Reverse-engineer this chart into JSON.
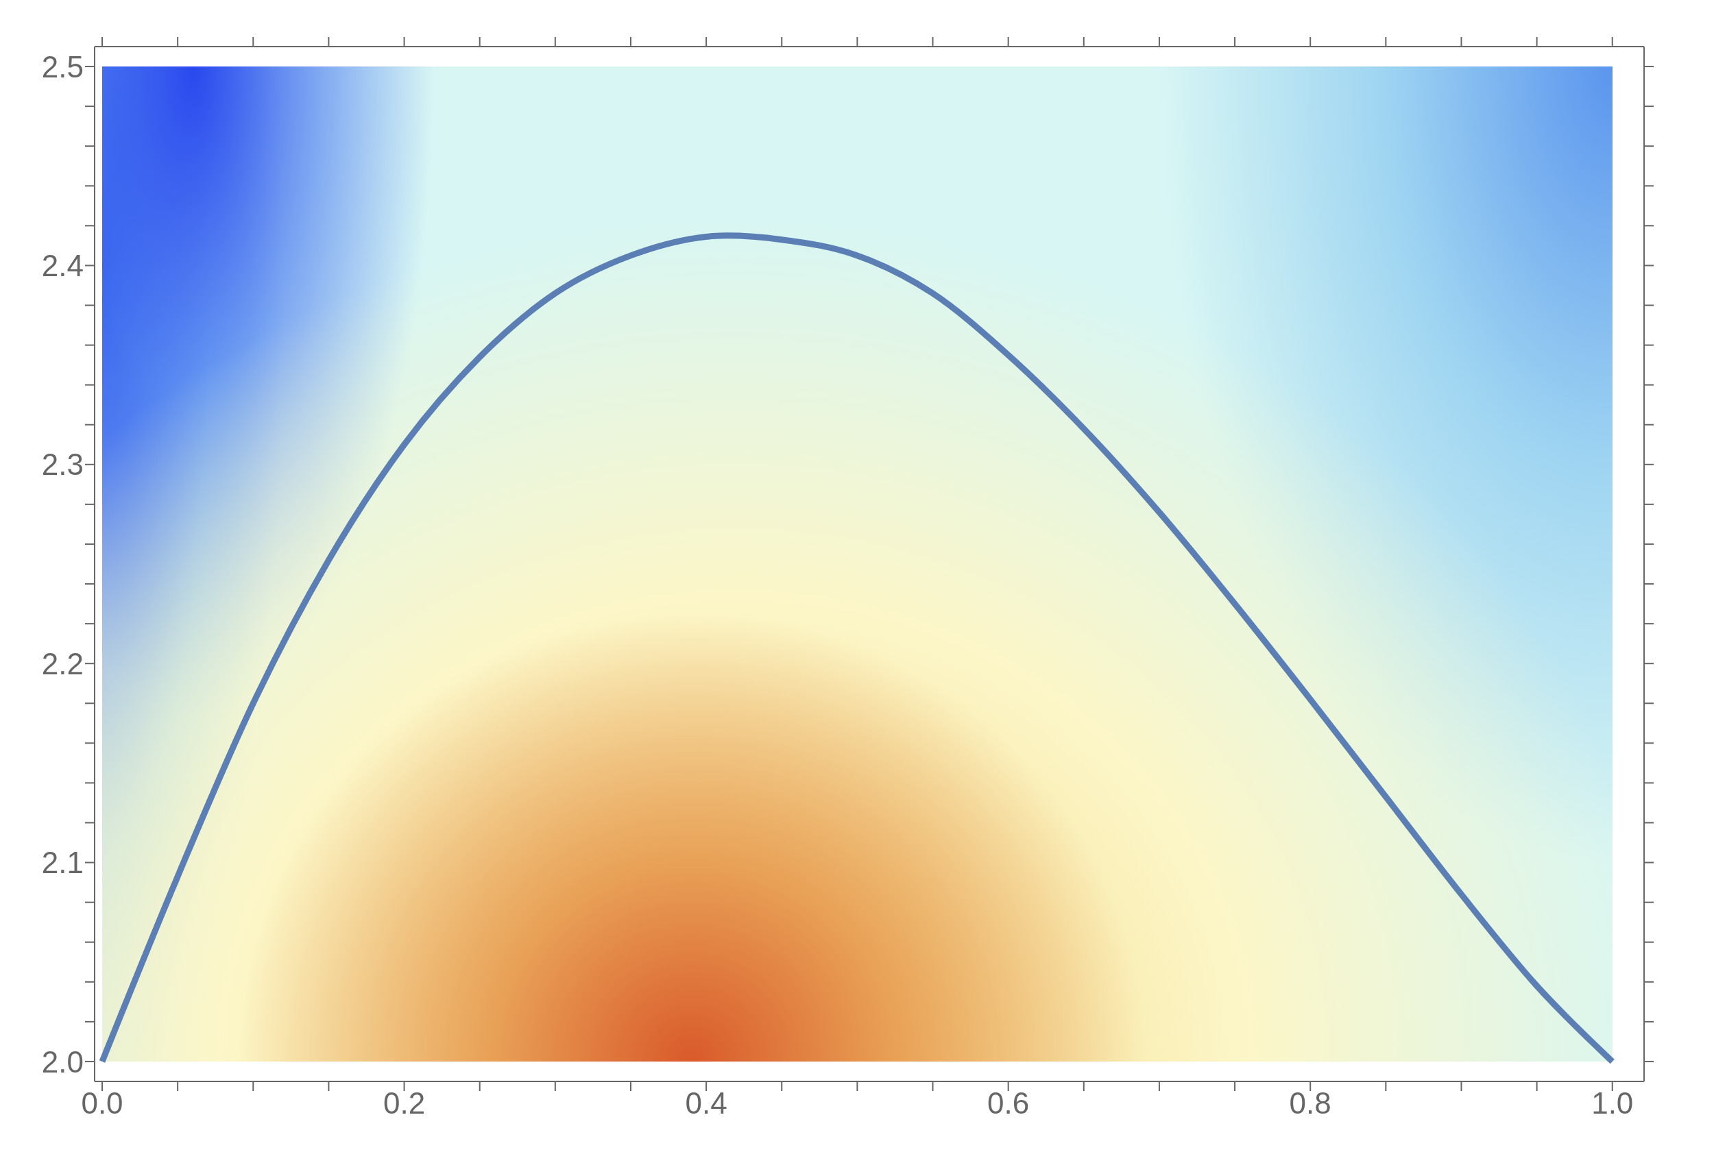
{
  "chart_data": {
    "type": "line",
    "x": [
      0,
      0.05,
      0.1,
      0.15,
      0.2,
      0.25,
      0.3,
      0.35,
      0.414,
      0.45,
      0.5,
      0.55,
      0.6,
      0.65,
      0.7,
      0.75,
      0.8,
      0.85,
      0.9,
      0.95,
      1.0
    ],
    "series": [
      {
        "color": "#5b7fb5",
        "values": [
          2.0,
          2.093,
          2.18,
          2.252,
          2.31,
          2.354,
          2.386,
          2.405,
          2.415,
          2.413,
          2.405,
          2.386,
          2.355,
          2.318,
          2.276,
          2.23,
          2.182,
          2.133,
          2.084,
          2.038,
          2.0
        ]
      }
    ],
    "xlim": [
      -0.005,
      1.021
    ],
    "ylim": [
      1.99,
      2.51
    ],
    "xticks": [
      {
        "value": 0,
        "label": "0.0"
      },
      {
        "value": 0.05,
        "label": null
      },
      {
        "value": 0.1,
        "label": null
      },
      {
        "value": 0.15,
        "label": null
      },
      0.2,
      {
        "value": 0.25,
        "label": null
      },
      {
        "value": 0.3,
        "label": null
      },
      {
        "value": 0.35,
        "label": null
      },
      0.4,
      {
        "value": 0.45,
        "label": null
      },
      {
        "value": 0.5,
        "label": null
      },
      {
        "value": 0.55,
        "label": null
      },
      0.6,
      {
        "value": 0.65,
        "label": null
      },
      {
        "value": 0.7,
        "label": null
      },
      {
        "value": 0.75,
        "label": null
      },
      0.8,
      {
        "value": 0.85,
        "label": null
      },
      {
        "value": 0.9,
        "label": null
      },
      {
        "value": 0.95,
        "label": null
      },
      {
        "value": 1,
        "label": "1.0"
      }
    ],
    "yticks": [
      {
        "value": 2,
        "label": "2.0"
      },
      {
        "value": 2.02,
        "label": null
      },
      {
        "value": 2.04,
        "label": null
      },
      {
        "value": 2.06,
        "label": null
      },
      {
        "value": 2.08,
        "label": null
      },
      2.1,
      {
        "value": 2.12,
        "label": null
      },
      {
        "value": 2.14,
        "label": null
      },
      {
        "value": 2.16,
        "label": null
      },
      {
        "value": 2.18,
        "label": null
      },
      2.2,
      {
        "value": 2.22,
        "label": null
      },
      {
        "value": 2.24,
        "label": null
      },
      {
        "value": 2.26,
        "label": null
      },
      {
        "value": 2.28,
        "label": null
      },
      2.3,
      {
        "value": 2.32,
        "label": null
      },
      {
        "value": 2.34,
        "label": null
      },
      {
        "value": 2.36,
        "label": null
      },
      {
        "value": 2.38,
        "label": null
      },
      2.4,
      {
        "value": 2.42,
        "label": null
      },
      {
        "value": 2.44,
        "label": null
      },
      {
        "value": 2.46,
        "label": null
      },
      {
        "value": 2.48,
        "label": null
      },
      2.5
    ],
    "marker": "none",
    "line_style": "solid"
  }
}
